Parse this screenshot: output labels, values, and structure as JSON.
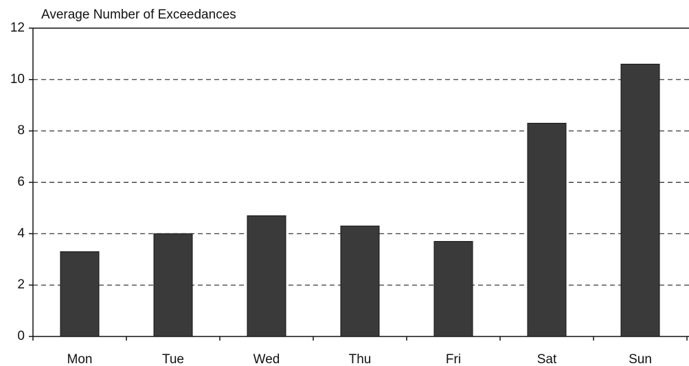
{
  "chart_data": {
    "type": "bar",
    "title": "Average Number of Exceedances",
    "categories": [
      "Mon",
      "Tue",
      "Wed",
      "Thu",
      "Fri",
      "Sat",
      "Sun"
    ],
    "values": [
      3.3,
      4.0,
      4.7,
      4.3,
      3.7,
      8.3,
      10.6
    ],
    "color": "#3a3a3a",
    "ylim": [
      0,
      12
    ],
    "yticks": [
      0,
      2,
      4,
      6,
      8,
      10,
      12
    ],
    "grid": true
  }
}
